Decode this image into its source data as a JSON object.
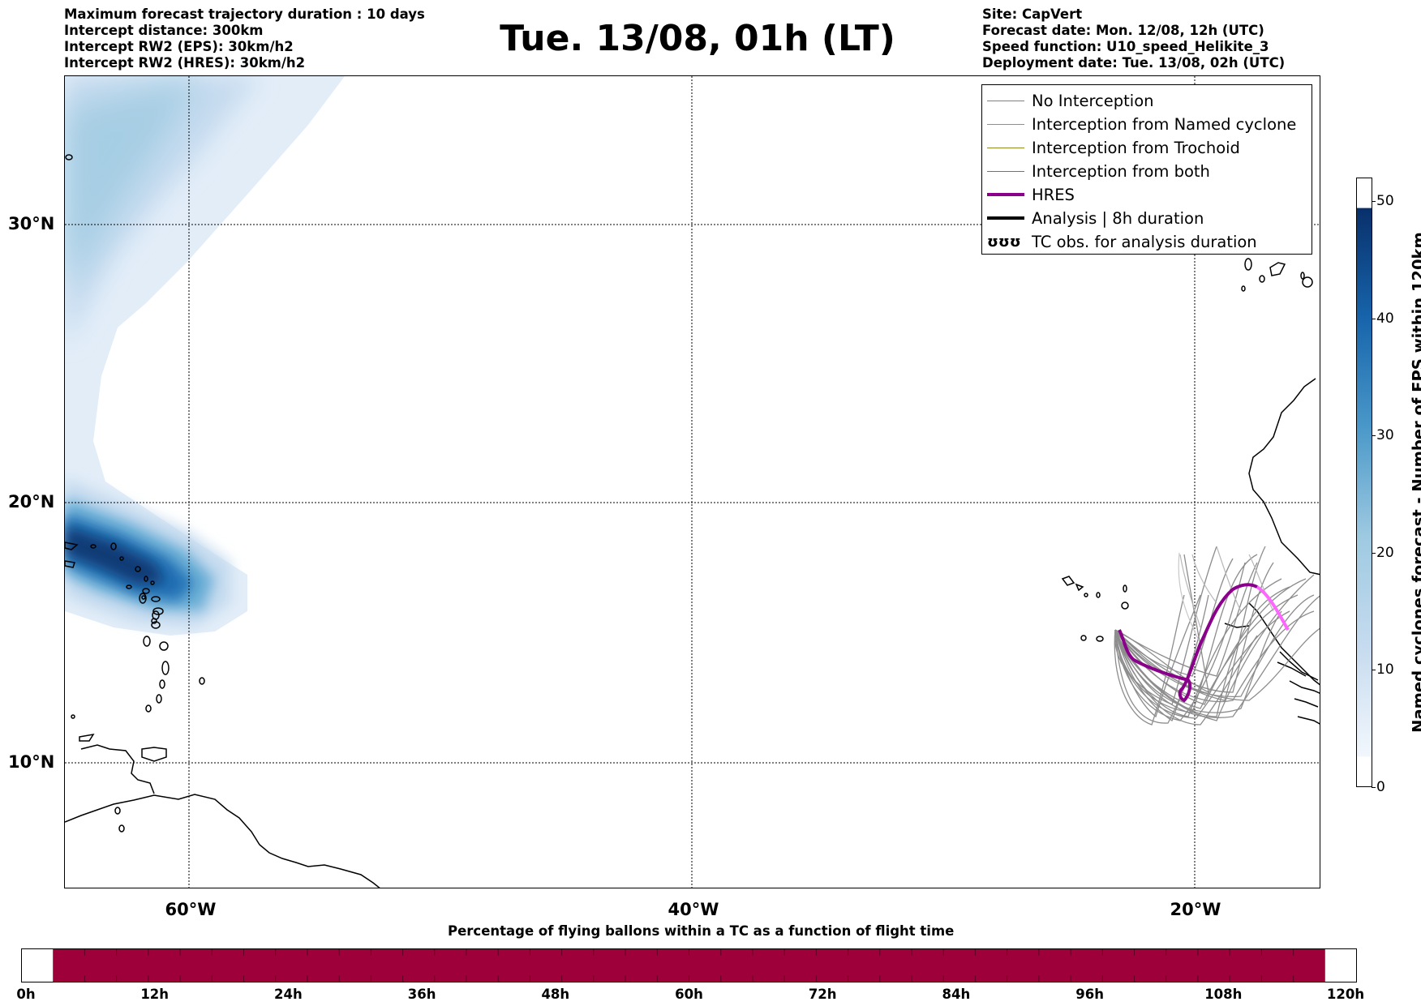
{
  "info_left": [
    "Maximum forecast trajectory duration : 10 days",
    "Intercept distance: 300km",
    "Intercept RW2 (EPS):  30km/h2",
    "Intercept RW2 (HRES): 30km/h2"
  ],
  "info_right": [
    "Site: CapVert",
    "Forecast date: Mon. 12/08, 12h (UTC)",
    "Speed function: U10_speed_Helikite_3",
    "Deployment date: Tue. 13/08, 02h (UTC)"
  ],
  "title": "Tue. 13/08, 01h (LT)",
  "map": {
    "lat_labels": [
      "30°N",
      "20°N",
      "10°N"
    ],
    "lon_labels": [
      "60°W",
      "40°W",
      "20°W"
    ],
    "lat_range": [
      5.2,
      34.5
    ],
    "lon_range": [
      -65,
      -15
    ]
  },
  "legend": {
    "items": [
      {
        "label": "No Interception",
        "color": "#808080",
        "width": 1
      },
      {
        "label": "Interception from Named cyclone",
        "color": "#ff6633",
        "width": 1
      },
      {
        "label": "Interception from Trochoid",
        "color": "#8b8b22",
        "width": 1
      },
      {
        "label": "Interception from both",
        "color": "#22aa22",
        "width": 1
      },
      {
        "label": "HRES",
        "color": "#8b008b",
        "width": 4
      },
      {
        "label": "Analysis | 8h duration",
        "color": "#000000",
        "width": 4
      },
      {
        "label": "TC obs. for analysis duration",
        "glyph": "ʊʊʊ"
      }
    ]
  },
  "colorbar_vertical": {
    "label": "Named cyclones forecast - Number of EPS within 120km",
    "ticks": [
      "0",
      "10",
      "20",
      "30",
      "40",
      "50"
    ],
    "min": 0,
    "max": 52
  },
  "colorbar_horizontal": {
    "title": "Percentage of flying ballons within a TC as a function of flight time",
    "ticks": [
      "0h",
      "12h",
      "24h",
      "36h",
      "48h",
      "60h",
      "72h",
      "84h",
      "96h",
      "108h",
      "120h"
    ],
    "fill_color": "#9e003a"
  }
}
